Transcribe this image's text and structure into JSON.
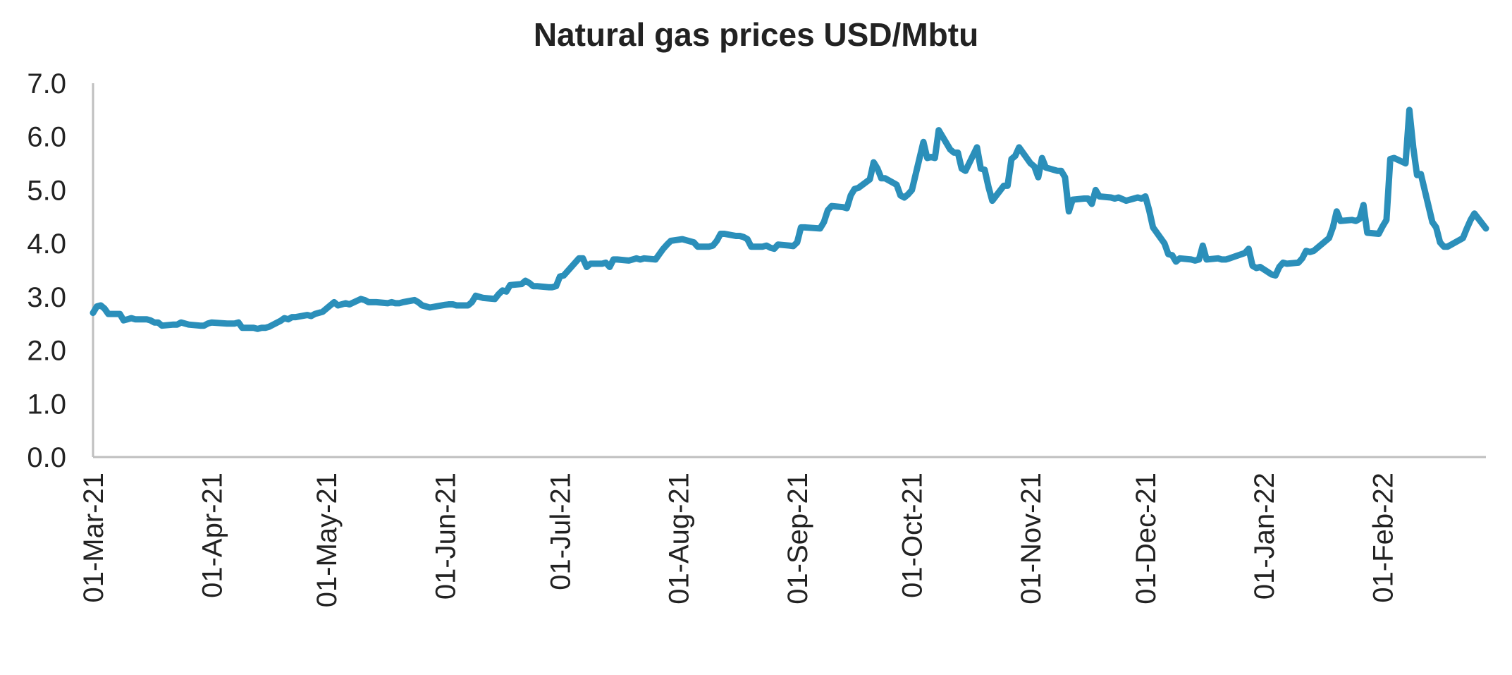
{
  "chart_data": {
    "type": "line",
    "title": "Natural gas prices USD/Mbtu",
    "xlabel": "",
    "ylabel": "",
    "ylim": [
      0,
      7
    ],
    "y_ticks": [
      "0.0",
      "1.0",
      "2.0",
      "3.0",
      "4.0",
      "5.0",
      "6.0",
      "7.0"
    ],
    "x_range": [
      "2021-03-01",
      "2022-02-28"
    ],
    "x_tick_dates": [
      "2021-03-01",
      "2021-04-01",
      "2021-05-01",
      "2021-06-01",
      "2021-07-01",
      "2021-08-01",
      "2021-09-01",
      "2021-10-01",
      "2021-11-01",
      "2021-12-01",
      "2022-01-01",
      "2022-02-01"
    ],
    "x_ticks": [
      "01-Mar-21",
      "01-Apr-21",
      "01-May-21",
      "01-Jun-21",
      "01-Jul-21",
      "01-Aug-21",
      "01-Sep-21",
      "01-Oct-21",
      "01-Nov-21",
      "01-Dec-21",
      "01-Jan-22",
      "01-Feb-22"
    ],
    "grid": false,
    "line_color": "#2b8fba",
    "series": [
      {
        "x": [
          "2021-03-01",
          "2021-03-02",
          "2021-03-03",
          "2021-03-04",
          "2021-03-05",
          "2021-03-08",
          "2021-03-09",
          "2021-03-10",
          "2021-03-11",
          "2021-03-12",
          "2021-03-15",
          "2021-03-16",
          "2021-03-17",
          "2021-03-18",
          "2021-03-19",
          "2021-03-22",
          "2021-03-23",
          "2021-03-24",
          "2021-03-25",
          "2021-03-26",
          "2021-03-29",
          "2021-03-30",
          "2021-03-31",
          "2021-04-01",
          "2021-04-05",
          "2021-04-06",
          "2021-04-07",
          "2021-04-08",
          "2021-04-09",
          "2021-04-12",
          "2021-04-13",
          "2021-04-14",
          "2021-04-15",
          "2021-04-16",
          "2021-04-19",
          "2021-04-20",
          "2021-04-21",
          "2021-04-22",
          "2021-04-23",
          "2021-04-26",
          "2021-04-27",
          "2021-04-28",
          "2021-04-29",
          "2021-04-30",
          "2021-05-03",
          "2021-05-04",
          "2021-05-05",
          "2021-05-06",
          "2021-05-07",
          "2021-05-10",
          "2021-05-11",
          "2021-05-12",
          "2021-05-13",
          "2021-05-14",
          "2021-05-17",
          "2021-05-18",
          "2021-05-19",
          "2021-05-20",
          "2021-05-21",
          "2021-05-24",
          "2021-05-25",
          "2021-05-26",
          "2021-05-27",
          "2021-05-28",
          "2021-06-01",
          "2021-06-02",
          "2021-06-03",
          "2021-06-04",
          "2021-06-07",
          "2021-06-08",
          "2021-06-09",
          "2021-06-10",
          "2021-06-11",
          "2021-06-14",
          "2021-06-15",
          "2021-06-16",
          "2021-06-17",
          "2021-06-18",
          "2021-06-21",
          "2021-06-22",
          "2021-06-23",
          "2021-06-24",
          "2021-06-25",
          "2021-06-28",
          "2021-06-29",
          "2021-06-30",
          "2021-07-01",
          "2021-07-02",
          "2021-07-06",
          "2021-07-07",
          "2021-07-08",
          "2021-07-09",
          "2021-07-12",
          "2021-07-13",
          "2021-07-14",
          "2021-07-15",
          "2021-07-16",
          "2021-07-19",
          "2021-07-20",
          "2021-07-21",
          "2021-07-22",
          "2021-07-23",
          "2021-07-26",
          "2021-07-27",
          "2021-07-28",
          "2021-07-29",
          "2021-07-30",
          "2021-08-02",
          "2021-08-03",
          "2021-08-04",
          "2021-08-05",
          "2021-08-06",
          "2021-08-09",
          "2021-08-10",
          "2021-08-11",
          "2021-08-12",
          "2021-08-13",
          "2021-08-16",
          "2021-08-17",
          "2021-08-18",
          "2021-08-19",
          "2021-08-20",
          "2021-08-23",
          "2021-08-24",
          "2021-08-25",
          "2021-08-26",
          "2021-08-27",
          "2021-08-30",
          "2021-08-31",
          "2021-09-01",
          "2021-09-02",
          "2021-09-03",
          "2021-09-07",
          "2021-09-08",
          "2021-09-09",
          "2021-09-10",
          "2021-09-13",
          "2021-09-14",
          "2021-09-15",
          "2021-09-16",
          "2021-09-17",
          "2021-09-20",
          "2021-09-21",
          "2021-09-22",
          "2021-09-23",
          "2021-09-24",
          "2021-09-27",
          "2021-09-28",
          "2021-09-29",
          "2021-09-30",
          "2021-10-01",
          "2021-10-04",
          "2021-10-05",
          "2021-10-06",
          "2021-10-07",
          "2021-10-08",
          "2021-10-11",
          "2021-10-12",
          "2021-10-13",
          "2021-10-14",
          "2021-10-15",
          "2021-10-18",
          "2021-10-19",
          "2021-10-20",
          "2021-10-21",
          "2021-10-22",
          "2021-10-25",
          "2021-10-26",
          "2021-10-27",
          "2021-10-28",
          "2021-10-29",
          "2021-11-01",
          "2021-11-02",
          "2021-11-03",
          "2021-11-04",
          "2021-11-05",
          "2021-11-08",
          "2021-11-09",
          "2021-11-10",
          "2021-11-11",
          "2021-11-12",
          "2021-11-15",
          "2021-11-16",
          "2021-11-17",
          "2021-11-18",
          "2021-11-19",
          "2021-11-22",
          "2021-11-23",
          "2021-11-24",
          "2021-11-26",
          "2021-11-29",
          "2021-11-30",
          "2021-12-01",
          "2021-12-02",
          "2021-12-03",
          "2021-12-06",
          "2021-12-07",
          "2021-12-08",
          "2021-12-09",
          "2021-12-10",
          "2021-12-13",
          "2021-12-14",
          "2021-12-15",
          "2021-12-16",
          "2021-12-17",
          "2021-12-20",
          "2021-12-21",
          "2021-12-22",
          "2021-12-23",
          "2021-12-27",
          "2021-12-28",
          "2021-12-29",
          "2021-12-30",
          "2021-12-31",
          "2022-01-03",
          "2022-01-04",
          "2022-01-05",
          "2022-01-06",
          "2022-01-07",
          "2022-01-10",
          "2022-01-11",
          "2022-01-12",
          "2022-01-13",
          "2022-01-14",
          "2022-01-18",
          "2022-01-19",
          "2022-01-20",
          "2022-01-21",
          "2022-01-24",
          "2022-01-25",
          "2022-01-26",
          "2022-01-27",
          "2022-01-28",
          "2022-01-31",
          "2022-02-01",
          "2022-02-02",
          "2022-02-03",
          "2022-02-04",
          "2022-02-07",
          "2022-02-08",
          "2022-02-09",
          "2022-02-10",
          "2022-02-11",
          "2022-02-14",
          "2022-02-15",
          "2022-02-16",
          "2022-02-17",
          "2022-02-18",
          "2022-02-22",
          "2022-02-23",
          "2022-02-24",
          "2022-02-25",
          "2022-02-28"
        ],
        "y": [
          2.7,
          2.82,
          2.84,
          2.78,
          2.68,
          2.68,
          2.56,
          2.58,
          2.6,
          2.58,
          2.58,
          2.56,
          2.52,
          2.52,
          2.46,
          2.48,
          2.48,
          2.52,
          2.5,
          2.48,
          2.46,
          2.46,
          2.5,
          2.52,
          2.5,
          2.5,
          2.5,
          2.52,
          2.42,
          2.42,
          2.4,
          2.42,
          2.42,
          2.44,
          2.55,
          2.6,
          2.58,
          2.62,
          2.62,
          2.66,
          2.64,
          2.68,
          2.7,
          2.72,
          2.9,
          2.84,
          2.86,
          2.88,
          2.86,
          2.96,
          2.94,
          2.9,
          2.9,
          2.9,
          2.88,
          2.9,
          2.88,
          2.88,
          2.9,
          2.94,
          2.9,
          2.84,
          2.82,
          2.8,
          2.85,
          2.86,
          2.86,
          2.84,
          2.84,
          2.9,
          3.02,
          3.0,
          2.98,
          2.96,
          3.05,
          3.12,
          3.1,
          3.22,
          3.24,
          3.3,
          3.26,
          3.2,
          3.2,
          3.18,
          3.18,
          3.2,
          3.38,
          3.4,
          3.72,
          3.72,
          3.56,
          3.62,
          3.62,
          3.64,
          3.56,
          3.7,
          3.7,
          3.68,
          3.7,
          3.72,
          3.7,
          3.72,
          3.7,
          3.8,
          3.9,
          3.98,
          4.05,
          4.08,
          4.06,
          4.04,
          4.02,
          3.94,
          3.94,
          3.96,
          4.05,
          4.18,
          4.18,
          4.14,
          4.14,
          4.12,
          4.08,
          3.94,
          3.94,
          3.96,
          3.92,
          3.9,
          3.98,
          3.96,
          3.95,
          4.02,
          4.3,
          4.3,
          4.28,
          4.4,
          4.62,
          4.7,
          4.68,
          4.66,
          4.9,
          5.02,
          5.04,
          5.2,
          5.52,
          5.4,
          5.22,
          5.22,
          5.1,
          4.9,
          4.86,
          4.92,
          5.0,
          5.9,
          5.6,
          5.62,
          5.6,
          6.12,
          5.76,
          5.7,
          5.7,
          5.4,
          5.36,
          5.8,
          5.4,
          5.38,
          5.06,
          4.8,
          5.08,
          5.08,
          5.58,
          5.64,
          5.8,
          5.5,
          5.44,
          5.24,
          5.6,
          5.42,
          5.36,
          5.36,
          5.24,
          4.6,
          4.82,
          4.84,
          4.84,
          4.74,
          5.0,
          4.88,
          4.86,
          4.84,
          4.86,
          4.8,
          4.86,
          4.84,
          4.88,
          4.62,
          4.3,
          4.0,
          3.8,
          3.78,
          3.66,
          3.72,
          3.7,
          3.68,
          3.7,
          3.96,
          3.7,
          3.72,
          3.7,
          3.7,
          3.72,
          3.82,
          3.9,
          3.58,
          3.54,
          3.56,
          3.42,
          3.4,
          3.56,
          3.64,
          3.62,
          3.64,
          3.72,
          3.86,
          3.84,
          3.86,
          4.1,
          4.3,
          4.6,
          4.42,
          4.44,
          4.42,
          4.46,
          4.72,
          4.2,
          4.18,
          4.32,
          4.44,
          5.58,
          5.6,
          5.5,
          6.5,
          5.8,
          5.28,
          5.3,
          4.4,
          4.3,
          4.02,
          3.94,
          3.94,
          4.1,
          4.28,
          4.44,
          4.56,
          4.28
        ]
      }
    ]
  }
}
